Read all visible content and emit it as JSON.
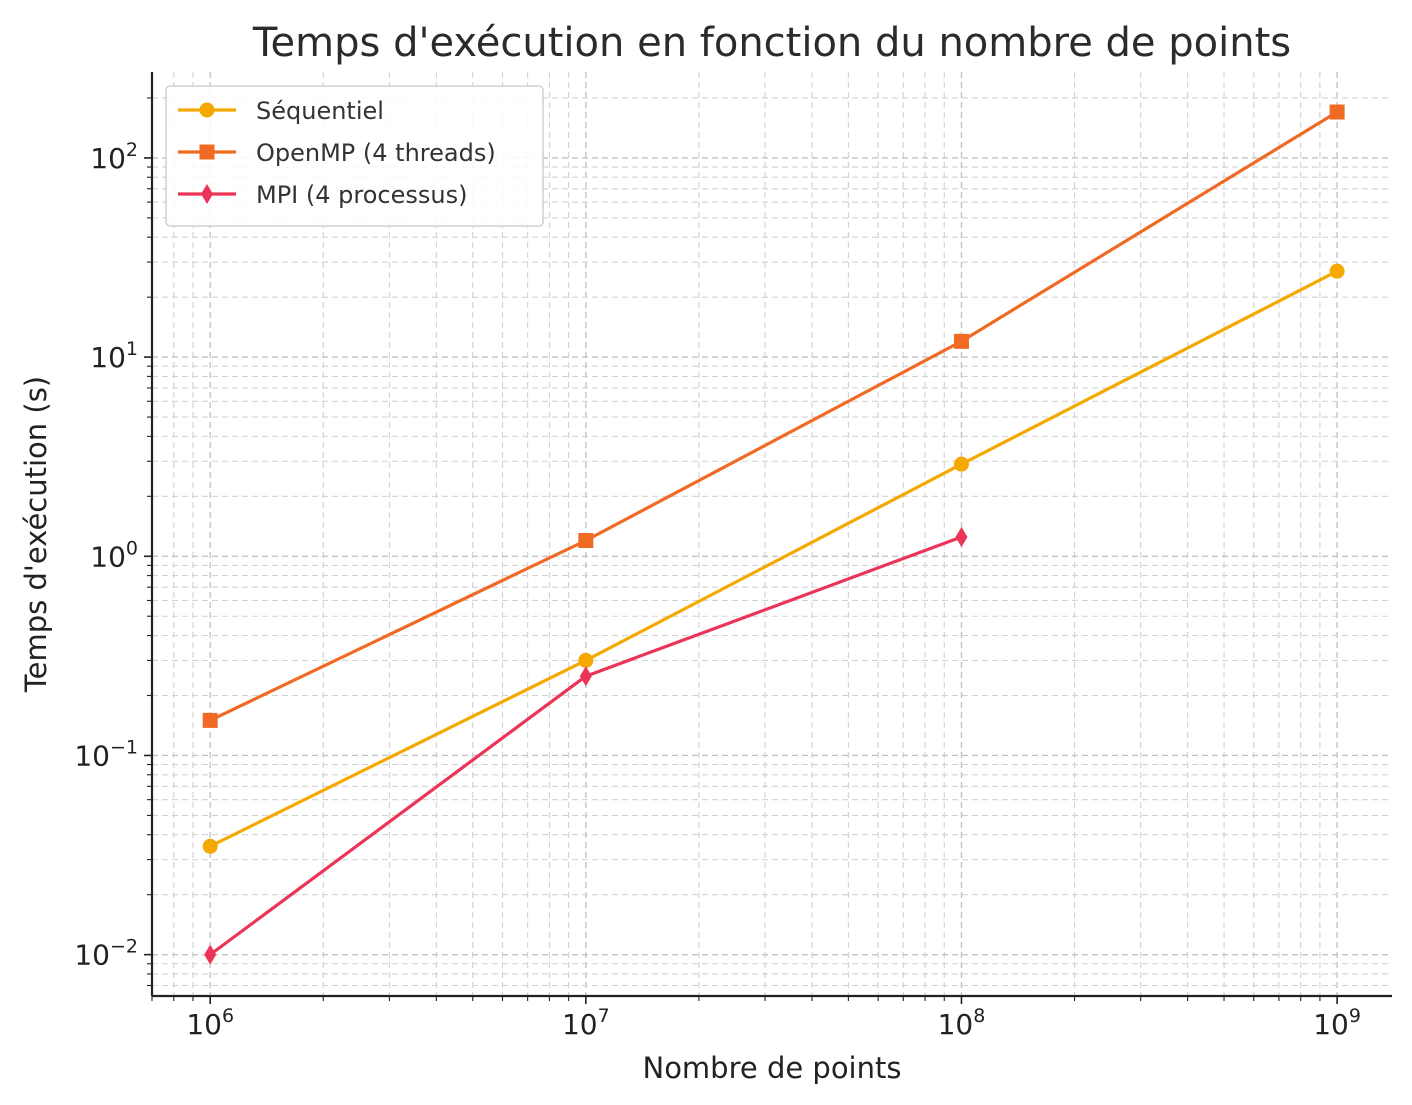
{
  "chart_data": {
    "type": "line",
    "title": "Temps d'exécution en fonction du nombre de points",
    "xlabel": "Nombre de points",
    "ylabel": "Temps d'exécution (s)",
    "xscale": "log",
    "yscale": "log",
    "xlim": [
      700000,
      1400000000
    ],
    "ylim": [
      0.0062,
      270
    ],
    "grid": true,
    "legend_position": "top-left",
    "x_ticks": [
      {
        "value": 1000000,
        "base": "10",
        "exp": "6"
      },
      {
        "value": 10000000,
        "base": "10",
        "exp": "7"
      },
      {
        "value": 100000000,
        "base": "10",
        "exp": "8"
      },
      {
        "value": 1000000000,
        "base": "10",
        "exp": "9"
      }
    ],
    "y_ticks": [
      {
        "value": 0.01,
        "base": "10",
        "exp": "−2"
      },
      {
        "value": 0.1,
        "base": "10",
        "exp": "−1"
      },
      {
        "value": 1,
        "base": "10",
        "exp": "0"
      },
      {
        "value": 10,
        "base": "10",
        "exp": "1"
      },
      {
        "value": 100,
        "base": "10",
        "exp": "2"
      }
    ],
    "series": [
      {
        "name": "Séquentiel",
        "color": "#f5a900",
        "marker": "circle",
        "x": [
          1000000,
          10000000,
          100000000,
          1000000000
        ],
        "y": [
          0.035,
          0.3,
          2.9,
          27
        ]
      },
      {
        "name": "OpenMP (4 threads)",
        "color": "#f06a24",
        "marker": "square",
        "x": [
          1000000,
          10000000,
          100000000,
          1000000000
        ],
        "y": [
          0.15,
          1.2,
          12,
          170
        ]
      },
      {
        "name": "MPI (4 processus)",
        "color": "#eb3458",
        "marker": "diamond",
        "x": [
          1000000,
          10000000,
          100000000
        ],
        "y": [
          0.01,
          0.25,
          1.25
        ]
      }
    ]
  }
}
